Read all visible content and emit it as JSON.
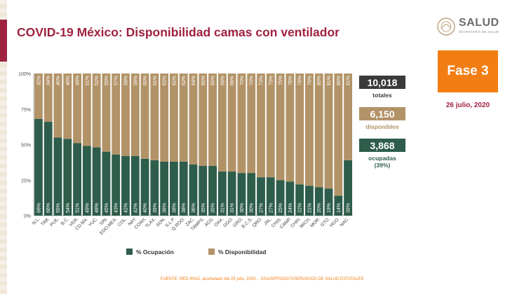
{
  "title": "COVID-19 México: Disponibilidad camas con ventilador",
  "logo": {
    "name": "SALUD",
    "subtitle": "SECRETARÍA DE SALUD"
  },
  "fase": "Fase 3",
  "date": "26 julio, 2020",
  "stats": {
    "total_value": "10,018",
    "total_label": "totales",
    "disponibles_value": "6,150",
    "disponibles_label": "disponibles",
    "ocupadas_value": "3,868",
    "ocupadas_label_1": "ocupadas",
    "ocupadas_label_2": "(39%)"
  },
  "footer": "FUENTE: RED IRAG, acumulado del 25 julio, 2020. -  SSA/SPPS/DGTI/SERVICIOS DE SALUD ESTATALES",
  "colors": {
    "ocupacion": "#2e5d4b",
    "disponibilidad": "#b29368",
    "title": "#9f2241",
    "fase": "#f27d12",
    "total_box": "#3a3a3a"
  },
  "chart_data": {
    "type": "bar",
    "stacked": true,
    "categories": [
      "N.L.",
      "TAB.",
      "PUE.",
      "B.C.",
      "VER.",
      "CD.MX.",
      "YUC.",
      "SIN.",
      "EDO.MEX.",
      "COL.",
      "NAY.",
      "COAH.",
      "TLAX.",
      "SON.",
      "S.L.P.",
      "Q.ROO.",
      "ZAC.",
      "TAMPS.",
      "AGS.",
      "OAX.",
      "DGO.",
      "GRO.",
      "B.C.S.",
      "QRO.",
      "JAL.",
      "CHIS.",
      "CAMP.",
      "CHIH.",
      "MICH.",
      "MOR.",
      "GTO.",
      "HGO.",
      "NAC."
    ],
    "series": [
      {
        "name": "% Ocupación",
        "values": [
          68,
          66,
          55,
          54,
          51,
          49,
          48,
          45,
          43,
          42,
          42,
          40,
          39,
          38,
          38,
          38,
          36,
          35,
          35,
          31,
          31,
          30,
          30,
          27,
          27,
          25,
          24,
          22,
          21,
          20,
          19,
          14,
          39
        ]
      },
      {
        "name": "% Disponibilidad",
        "values": [
          32,
          34,
          45,
          46,
          49,
          51,
          52,
          55,
          57,
          58,
          58,
          60,
          61,
          62,
          62,
          62,
          64,
          65,
          65,
          69,
          69,
          70,
          70,
          73,
          73,
          75,
          76,
          78,
          79,
          80,
          81,
          86,
          61
        ]
      }
    ],
    "yticks": [
      "0%",
      "25%",
      "50%",
      "75%",
      "100%"
    ],
    "ylim": [
      0,
      100
    ],
    "legend": "bottom"
  }
}
